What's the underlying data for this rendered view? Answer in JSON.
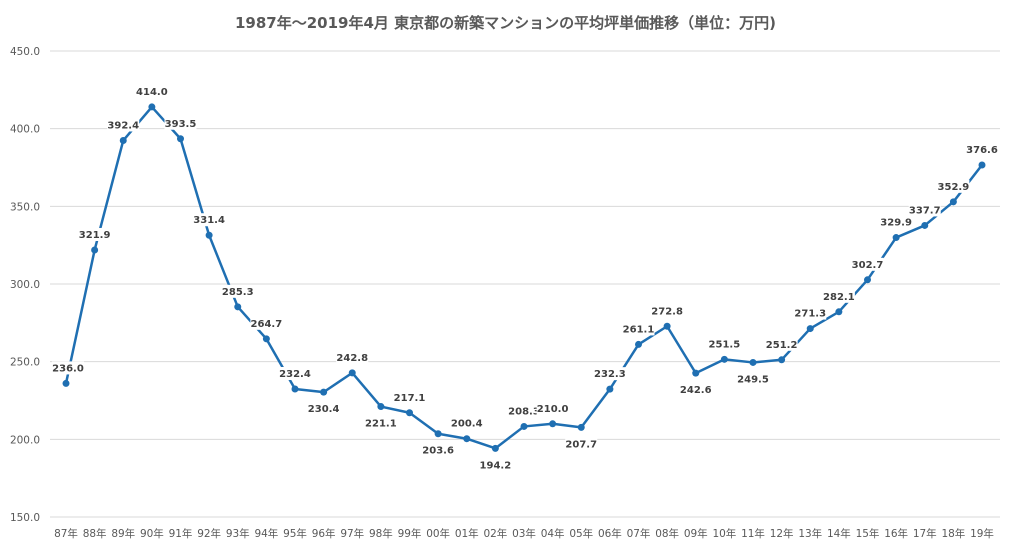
{
  "chart_data": {
    "type": "line",
    "title": "1987年～2019年4月 東京都の新築マンションの平均坪単価推移（単位：万円)",
    "xlabel": "",
    "ylabel": "",
    "ylim": [
      150,
      450
    ],
    "yticks": [
      "150.0",
      "200.0",
      "250.0",
      "300.0",
      "350.0",
      "400.0",
      "450.0"
    ],
    "grid": true,
    "categories": [
      "87年",
      "88年",
      "89年",
      "90年",
      "91年",
      "92年",
      "93年",
      "94年",
      "95年",
      "96年",
      "97年",
      "98年",
      "99年",
      "00年",
      "01年",
      "02年",
      "03年",
      "04年",
      "05年",
      "06年",
      "07年",
      "08年",
      "09年",
      "10年",
      "11年",
      "12年",
      "13年",
      "14年",
      "15年",
      "16年",
      "17年",
      "18年",
      "19年"
    ],
    "series": [
      {
        "name": "平均坪単価",
        "color": "#1f6fb2",
        "values": [
          236.0,
          321.9,
          392.4,
          414.0,
          393.5,
          331.4,
          285.3,
          264.7,
          232.4,
          230.4,
          242.8,
          221.1,
          217.1,
          203.6,
          200.4,
          194.2,
          208.3,
          210.0,
          207.7,
          232.3,
          261.1,
          272.8,
          242.6,
          251.5,
          249.5,
          251.2,
          271.3,
          282.1,
          302.7,
          329.9,
          337.7,
          352.9,
          376.6
        ],
        "labels": [
          "236.0",
          "321.9",
          "392.4",
          "414.0",
          "393.5",
          "331.4",
          "285.3",
          "264.7",
          "232.4",
          "230.4",
          "242.8",
          "221.1",
          "217.1",
          "203.6",
          "200.4",
          "194.2",
          "208.3",
          "210.0",
          "207.7",
          "232.3",
          "261.1",
          "272.8",
          "242.6",
          "251.5",
          "249.5",
          "251.2",
          "271.3",
          "282.1",
          "302.7",
          "329.9",
          "337.7",
          "352.9",
          "376.6"
        ]
      }
    ]
  }
}
